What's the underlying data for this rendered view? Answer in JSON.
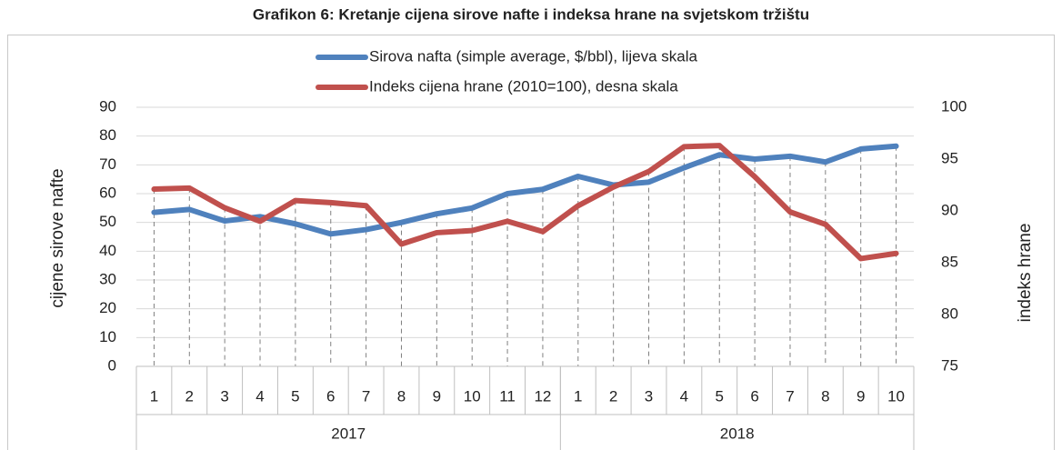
{
  "chart_data": {
    "type": "line",
    "title": "Grafikon 6: Kretanje cijena sirove nafte i indeksa hrane na svjetskom tržištu",
    "y_label": "cijene sirove nafte",
    "y2_label": "indeks hrane",
    "category_groups": [
      {
        "label": "2017",
        "categories": [
          "1",
          "2",
          "3",
          "4",
          "5",
          "6",
          "7",
          "8",
          "9",
          "10",
          "11",
          "12"
        ]
      },
      {
        "label": "2018",
        "categories": [
          "1",
          "2",
          "3",
          "4",
          "5",
          "6",
          "7",
          "8",
          "9",
          "10"
        ]
      }
    ],
    "series": [
      {
        "name": "Sirova nafta (simple average, $/bbl), lijeva skala",
        "color": "#4f81bd",
        "values": [
          53.5,
          54.5,
          50.5,
          52,
          49.5,
          46,
          47.5,
          50,
          53,
          55,
          60,
          61.5,
          66,
          63,
          64,
          69,
          73.5,
          72,
          73,
          71,
          75.5,
          76.5
        ]
      },
      {
        "name": "Indeks cijena hrane (2010=100), desna skala",
        "color": "#c0504d",
        "axis": "y2",
        "values": [
          92.1,
          92.2,
          90.3,
          89,
          91,
          90.8,
          90.5,
          86.8,
          87.9,
          88.1,
          89,
          88,
          90.5,
          92.3,
          93.8,
          96.2,
          96.3,
          93.3,
          89.9,
          88.7,
          85.4,
          85.9
        ]
      }
    ],
    "ylim": [
      0,
      90
    ],
    "yticks": [
      0,
      10,
      20,
      30,
      40,
      50,
      60,
      70,
      80,
      90
    ],
    "y2lim": [
      75,
      100
    ],
    "y2ticks": [
      75,
      80,
      85,
      90,
      95,
      100
    ],
    "grid": true,
    "legend": "top"
  }
}
